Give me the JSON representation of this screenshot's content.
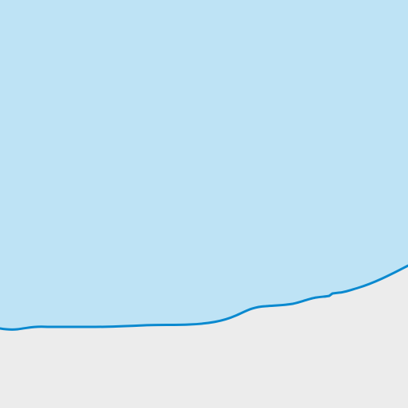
{
  "map": {
    "land_color": "#ececec",
    "water_fill_color": "#bee3f5",
    "water_outline_color": "#0a89cf"
  }
}
